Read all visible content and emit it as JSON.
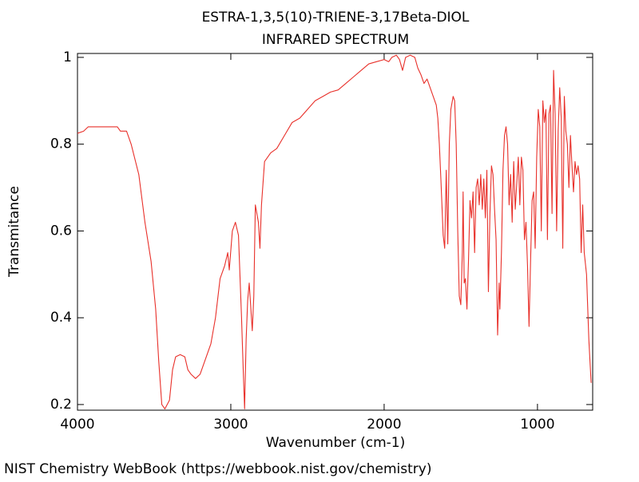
{
  "chart_data": {
    "type": "line",
    "title": "ESTRA-1,3,5(10)-TRIENE-3,17Beta-DIOL",
    "subtitle": "INFRARED SPECTRUM",
    "x_label": "Wavenumber (cm-1)",
    "y_label": "Transmitance",
    "source": "NIST Chemistry WebBook (https://webbook.nist.gov/chemistry)",
    "color": "#e8302a",
    "xlim": [
      4000,
      640
    ],
    "xticks": [
      4000,
      3000,
      2000,
      1000
    ],
    "ylim": [
      0.187,
      1.009
    ],
    "yticks": [
      0.2,
      0.4,
      0.6,
      0.8,
      1
    ],
    "x": [
      4000,
      3960,
      3930,
      3850,
      3740,
      3720,
      3680,
      3650,
      3600,
      3560,
      3520,
      3490,
      3470,
      3450,
      3430,
      3400,
      3380,
      3360,
      3330,
      3300,
      3280,
      3260,
      3230,
      3200,
      3170,
      3130,
      3100,
      3070,
      3040,
      3020,
      3010,
      2990,
      2970,
      2950,
      2930,
      2920,
      2910,
      2900,
      2890,
      2880,
      2860,
      2850,
      2840,
      2820,
      2810,
      2800,
      2780,
      2740,
      2700,
      2650,
      2600,
      2550,
      2500,
      2450,
      2400,
      2350,
      2300,
      2250,
      2200,
      2150,
      2100,
      2050,
      2000,
      1970,
      1950,
      1920,
      1900,
      1880,
      1860,
      1830,
      1800,
      1780,
      1760,
      1740,
      1720,
      1700,
      1680,
      1660,
      1650,
      1640,
      1630,
      1615,
      1605,
      1595,
      1585,
      1575,
      1565,
      1550,
      1540,
      1530,
      1520,
      1510,
      1500,
      1490,
      1485,
      1478,
      1470,
      1460,
      1450,
      1440,
      1430,
      1420,
      1410,
      1400,
      1390,
      1380,
      1370,
      1360,
      1350,
      1340,
      1330,
      1320,
      1310,
      1300,
      1290,
      1280,
      1270,
      1260,
      1250,
      1245,
      1235,
      1225,
      1215,
      1205,
      1195,
      1185,
      1175,
      1165,
      1155,
      1145,
      1135,
      1125,
      1115,
      1105,
      1095,
      1085,
      1075,
      1065,
      1055,
      1045,
      1035,
      1025,
      1015,
      1005,
      995,
      985,
      975,
      965,
      955,
      945,
      935,
      925,
      915,
      905,
      895,
      885,
      875,
      865,
      855,
      845,
      835,
      825,
      815,
      805,
      795,
      785,
      775,
      765,
      755,
      745,
      735,
      725,
      715,
      705,
      695,
      680,
      665,
      650
    ],
    "values": [
      0.825,
      0.83,
      0.84,
      0.84,
      0.84,
      0.83,
      0.83,
      0.8,
      0.73,
      0.62,
      0.53,
      0.42,
      0.3,
      0.2,
      0.19,
      0.21,
      0.28,
      0.31,
      0.315,
      0.31,
      0.28,
      0.27,
      0.26,
      0.27,
      0.3,
      0.34,
      0.4,
      0.49,
      0.52,
      0.55,
      0.51,
      0.6,
      0.62,
      0.59,
      0.4,
      0.29,
      0.19,
      0.35,
      0.44,
      0.48,
      0.37,
      0.45,
      0.66,
      0.62,
      0.56,
      0.66,
      0.76,
      0.78,
      0.79,
      0.82,
      0.85,
      0.86,
      0.88,
      0.9,
      0.91,
      0.92,
      0.925,
      0.94,
      0.955,
      0.97,
      0.985,
      0.99,
      0.995,
      0.99,
      1.0,
      1.005,
      0.995,
      0.97,
      1.0,
      1.005,
      1.0,
      0.975,
      0.96,
      0.94,
      0.95,
      0.93,
      0.91,
      0.89,
      0.86,
      0.8,
      0.72,
      0.59,
      0.56,
      0.74,
      0.57,
      0.8,
      0.88,
      0.91,
      0.9,
      0.8,
      0.6,
      0.45,
      0.43,
      0.55,
      0.69,
      0.48,
      0.49,
      0.42,
      0.53,
      0.67,
      0.63,
      0.69,
      0.55,
      0.7,
      0.72,
      0.66,
      0.73,
      0.65,
      0.72,
      0.63,
      0.74,
      0.46,
      0.64,
      0.75,
      0.73,
      0.65,
      0.58,
      0.36,
      0.48,
      0.42,
      0.55,
      0.74,
      0.82,
      0.84,
      0.8,
      0.66,
      0.73,
      0.62,
      0.76,
      0.65,
      0.71,
      0.77,
      0.66,
      0.77,
      0.74,
      0.58,
      0.62,
      0.52,
      0.38,
      0.53,
      0.67,
      0.69,
      0.56,
      0.77,
      0.88,
      0.84,
      0.6,
      0.9,
      0.85,
      0.88,
      0.58,
      0.87,
      0.89,
      0.64,
      0.97,
      0.87,
      0.6,
      0.83,
      0.93,
      0.86,
      0.56,
      0.91,
      0.83,
      0.8,
      0.7,
      0.82,
      0.75,
      0.69,
      0.76,
      0.73,
      0.75,
      0.72,
      0.55,
      0.66,
      0.55,
      0.5,
      0.35,
      0.25
    ]
  }
}
